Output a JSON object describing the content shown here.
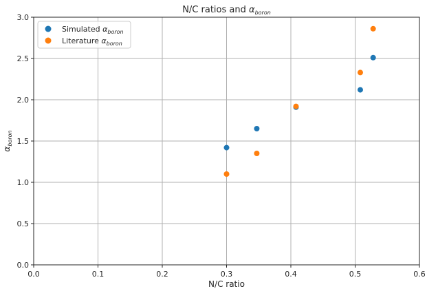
{
  "chart_data": {
    "type": "scatter",
    "title": "N/C ratios and ",
    "title_symbol": "α",
    "title_subscript": "boron",
    "xlabel": "N/C ratio",
    "ylabel_symbol": "α",
    "ylabel_subscript": "boron",
    "xlim": [
      0.0,
      0.6
    ],
    "ylim": [
      0.0,
      3.0
    ],
    "xticks": [
      "0.0",
      "0.1",
      "0.2",
      "0.3",
      "0.4",
      "0.5",
      "0.6"
    ],
    "yticks": [
      "0.0",
      "0.5",
      "1.0",
      "1.5",
      "2.0",
      "2.5",
      "3.0"
    ],
    "grid": true,
    "legend_position": "top-left",
    "series": [
      {
        "name": "Simulated ",
        "name_symbol": "α",
        "name_subscript": "boron",
        "color": "#1f77b4",
        "x": [
          0.3,
          0.347,
          0.408,
          0.508,
          0.528
        ],
        "y": [
          1.42,
          1.65,
          1.91,
          2.12,
          2.51
        ]
      },
      {
        "name": "Literature ",
        "name_symbol": "α",
        "name_subscript": "boron",
        "color": "#ff7f0e",
        "x": [
          0.3,
          0.347,
          0.408,
          0.508,
          0.528
        ],
        "y": [
          1.1,
          1.35,
          1.92,
          2.33,
          2.86
        ]
      }
    ]
  }
}
